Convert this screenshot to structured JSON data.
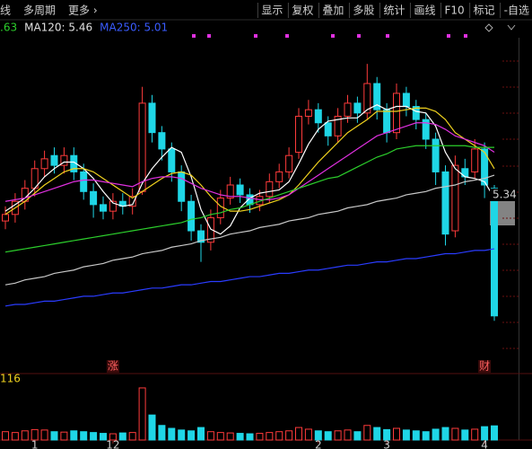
{
  "toolbar": {
    "left": [
      "线",
      "多周期",
      "更多 ›"
    ],
    "right": [
      "显示",
      "复权",
      "叠加",
      "多股",
      "统计",
      "画线",
      "F10",
      "标记",
      "-自选"
    ]
  },
  "chart_data": {
    "type": "candlestick",
    "categories": [
      null,
      null,
      null,
      "1",
      null,
      null,
      null,
      null,
      null,
      null,
      null,
      "12",
      null,
      null,
      null,
      null,
      null,
      null,
      null,
      null,
      null,
      null,
      null,
      null,
      null,
      null,
      null,
      null,
      null,
      null,
      null,
      null,
      "2",
      null,
      null,
      null,
      null,
      null,
      null,
      "3",
      null,
      null,
      null,
      null,
      null,
      null,
      null,
      null,
      null,
      "4",
      null
    ],
    "open": [
      5.18,
      5.22,
      5.3,
      5.38,
      5.5,
      5.58,
      5.52,
      5.58,
      5.48,
      5.36,
      5.28,
      5.24,
      5.3,
      5.27,
      5.36,
      5.9,
      5.72,
      5.62,
      5.48,
      5.3,
      5.12,
      5.05,
      5.2,
      5.32,
      5.4,
      5.34,
      5.28,
      5.33,
      5.42,
      5.48,
      5.6,
      5.82,
      5.86,
      5.78,
      5.7,
      5.82,
      5.9,
      5.84,
      6.02,
      5.86,
      5.72,
      5.96,
      5.88,
      5.8,
      5.68,
      5.48,
      5.12,
      5.5,
      5.48,
      5.62,
      5.38
    ],
    "high": [
      5.27,
      5.35,
      5.43,
      5.55,
      5.61,
      5.63,
      5.63,
      5.63,
      5.53,
      5.41,
      5.33,
      5.35,
      5.35,
      5.38,
      6.0,
      5.95,
      5.76,
      5.66,
      5.52,
      5.34,
      5.16,
      5.25,
      5.37,
      5.45,
      5.44,
      5.38,
      5.37,
      5.47,
      5.53,
      5.63,
      5.87,
      5.92,
      5.9,
      5.82,
      5.87,
      5.95,
      5.94,
      6.14,
      6.06,
      5.9,
      6.02,
      6.0,
      5.92,
      5.84,
      5.72,
      5.52,
      5.58,
      5.56,
      5.68,
      5.66,
      5.4
    ],
    "low": [
      5.13,
      5.17,
      5.25,
      5.33,
      5.45,
      5.47,
      5.47,
      5.43,
      5.31,
      5.2,
      5.19,
      5.19,
      5.22,
      5.22,
      5.34,
      5.66,
      5.55,
      5.42,
      5.24,
      5.06,
      4.93,
      5.0,
      5.16,
      5.28,
      5.29,
      5.23,
      5.24,
      5.29,
      5.38,
      5.44,
      5.56,
      5.77,
      5.72,
      5.64,
      5.66,
      5.78,
      5.78,
      5.8,
      5.8,
      5.66,
      5.68,
      5.82,
      5.74,
      5.62,
      5.4,
      5.03,
      5.08,
      5.4,
      5.44,
      5.32,
      4.57
    ],
    "close": [
      5.22,
      5.3,
      5.38,
      5.5,
      5.56,
      5.52,
      5.58,
      5.48,
      5.36,
      5.28,
      5.24,
      5.3,
      5.27,
      5.33,
      5.9,
      5.72,
      5.62,
      5.48,
      5.3,
      5.12,
      5.05,
      5.2,
      5.32,
      5.4,
      5.34,
      5.28,
      5.33,
      5.42,
      5.48,
      5.58,
      5.82,
      5.86,
      5.78,
      5.7,
      5.82,
      5.9,
      5.84,
      6.02,
      5.86,
      5.72,
      5.96,
      5.88,
      5.8,
      5.68,
      5.48,
      5.1,
      5.52,
      5.45,
      5.62,
      5.4,
      4.6
    ],
    "up_color": "#ff3b3b",
    "down_color": "#1fd6e6",
    "ylim": [
      4.5,
      6.3
    ],
    "lines": [
      {
        "color": "#ffffff",
        "values": [
          5.24,
          5.28,
          5.32,
          5.38,
          5.45,
          5.5,
          5.54,
          5.54,
          5.5,
          5.44,
          5.36,
          5.29,
          5.27,
          5.28,
          5.41,
          5.5,
          5.57,
          5.63,
          5.6,
          5.45,
          5.25,
          5.13,
          5.1,
          5.15,
          5.26,
          5.32,
          5.35,
          5.36,
          5.37,
          5.42,
          5.53,
          5.65,
          5.74,
          5.79,
          5.8,
          5.81,
          5.81,
          5.86,
          5.89,
          5.86,
          5.88,
          5.88,
          5.85,
          5.84,
          5.76,
          5.6,
          5.5,
          5.45,
          5.44,
          5.42,
          5.32
        ]
      },
      {
        "color": "#f0d21e",
        "values": [
          5.22,
          5.26,
          5.3,
          5.35,
          5.4,
          5.44,
          5.48,
          5.5,
          5.5,
          5.48,
          5.44,
          5.4,
          5.36,
          5.32,
          5.36,
          5.4,
          5.44,
          5.47,
          5.48,
          5.46,
          5.4,
          5.33,
          5.27,
          5.24,
          5.24,
          5.25,
          5.27,
          5.29,
          5.31,
          5.34,
          5.4,
          5.47,
          5.54,
          5.6,
          5.66,
          5.72,
          5.76,
          5.8,
          5.85,
          5.85,
          5.85,
          5.86,
          5.87,
          5.87,
          5.85,
          5.8,
          5.72,
          5.68,
          5.64,
          5.6,
          5.5
        ]
      },
      {
        "color": "#e030e0",
        "values": [
          5.3,
          5.31,
          5.32,
          5.34,
          5.36,
          5.38,
          5.4,
          5.42,
          5.43,
          5.43,
          5.42,
          5.41,
          5.4,
          5.39,
          5.42,
          5.44,
          5.45,
          5.45,
          5.44,
          5.41,
          5.38,
          5.36,
          5.34,
          5.33,
          5.33,
          5.32,
          5.31,
          5.31,
          5.32,
          5.34,
          5.38,
          5.42,
          5.46,
          5.5,
          5.54,
          5.58,
          5.62,
          5.66,
          5.7,
          5.72,
          5.74,
          5.76,
          5.78,
          5.78,
          5.77,
          5.74,
          5.7,
          5.68,
          5.66,
          5.64,
          5.6
        ]
      },
      {
        "color": "#2ccf2c",
        "values": [
          4.99,
          5.0,
          5.01,
          5.02,
          5.03,
          5.04,
          5.05,
          5.06,
          5.07,
          5.08,
          5.09,
          5.1,
          5.11,
          5.12,
          5.13,
          5.14,
          5.15,
          5.16,
          5.17,
          5.19,
          5.2,
          5.22,
          5.23,
          5.25,
          5.26,
          5.28,
          5.3,
          5.32,
          5.34,
          5.36,
          5.38,
          5.4,
          5.42,
          5.44,
          5.45,
          5.48,
          5.51,
          5.54,
          5.57,
          5.59,
          5.62,
          5.63,
          5.64,
          5.64,
          5.64,
          5.64,
          5.64,
          5.64,
          5.63,
          5.63,
          5.63
        ]
      },
      {
        "color": "#c8c8c8",
        "values": [
          4.79,
          4.8,
          4.82,
          4.83,
          4.84,
          4.86,
          4.87,
          4.88,
          4.9,
          4.91,
          4.92,
          4.94,
          4.95,
          4.96,
          4.98,
          4.99,
          5.0,
          5.02,
          5.03,
          5.04,
          5.06,
          5.07,
          5.08,
          5.1,
          5.11,
          5.12,
          5.14,
          5.15,
          5.16,
          5.18,
          5.19,
          5.2,
          5.22,
          5.23,
          5.24,
          5.26,
          5.27,
          5.28,
          5.3,
          5.31,
          5.32,
          5.34,
          5.35,
          5.36,
          5.38,
          5.39,
          5.4,
          5.42,
          5.43,
          5.44,
          5.46
        ]
      },
      {
        "color": "#2a3cff",
        "values": [
          4.66,
          4.67,
          4.67,
          4.68,
          4.69,
          4.69,
          4.7,
          4.71,
          4.72,
          4.72,
          4.73,
          4.74,
          4.74,
          4.75,
          4.76,
          4.77,
          4.77,
          4.78,
          4.79,
          4.79,
          4.8,
          4.81,
          4.81,
          4.82,
          4.83,
          4.84,
          4.84,
          4.85,
          4.86,
          4.86,
          4.87,
          4.88,
          4.88,
          4.89,
          4.9,
          4.91,
          4.91,
          4.92,
          4.93,
          4.93,
          4.94,
          4.95,
          4.95,
          4.96,
          4.97,
          4.98,
          4.98,
          4.99,
          5.0,
          5.0,
          5.01
        ]
      }
    ],
    "legend": [
      {
        "text": ".63",
        "color": "#2ccf2c"
      },
      {
        "text": "MA120: 5.46",
        "color": "#e0e0e0"
      },
      {
        "text": "MA250: 5.01",
        "color": "#3a5cff"
      }
    ],
    "price_marker": 5.34,
    "event_labels": [
      null,
      null,
      null,
      null,
      null,
      null,
      null,
      null,
      null,
      null,
      null,
      "涨",
      null,
      null,
      null,
      null,
      null,
      null,
      null,
      null,
      null,
      null,
      null,
      null,
      null,
      null,
      null,
      null,
      null,
      null,
      null,
      null,
      null,
      null,
      null,
      null,
      null,
      null,
      null,
      null,
      null,
      null,
      null,
      null,
      null,
      null,
      null,
      null,
      null,
      "财",
      null
    ],
    "volume": {
      "label": "116",
      "ylim": [
        0,
        140
      ],
      "values": [
        20,
        18,
        22,
        25,
        24,
        20,
        19,
        22,
        20,
        18,
        16,
        15,
        17,
        18,
        125,
        60,
        35,
        28,
        24,
        22,
        30,
        20,
        18,
        17,
        16,
        15,
        16,
        18,
        20,
        22,
        30,
        26,
        22,
        20,
        22,
        24,
        20,
        35,
        30,
        25,
        28,
        24,
        22,
        20,
        26,
        30,
        28,
        24,
        26,
        32,
        34
      ]
    }
  }
}
